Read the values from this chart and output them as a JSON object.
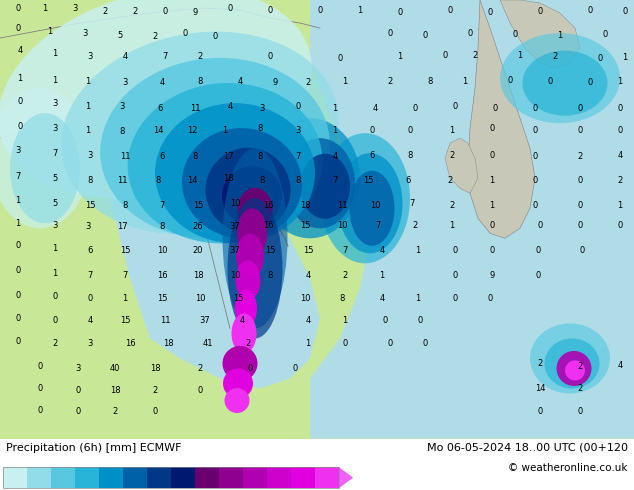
{
  "title_left": "Precipitation (6h) [mm] ECMWF",
  "title_right": "Mo 06-05-2024 18..00 UTC (00+120",
  "copyright": "© weatheronline.co.uk",
  "colorbar_levels": [
    "0.1",
    "0.5",
    "1",
    "2",
    "5",
    "10",
    "15",
    "20",
    "25",
    "30",
    "35",
    "40",
    "45",
    "50"
  ],
  "colorbar_colors": [
    "#c8f0f0",
    "#90dce8",
    "#58c8e0",
    "#28b4d8",
    "#0090c8",
    "#0060a8",
    "#003888",
    "#001870",
    "#6a0070",
    "#900090",
    "#b000b0",
    "#cc00cc",
    "#e000e0",
    "#f030f0"
  ],
  "arrow_color": "#f060f8",
  "fig_width": 6.34,
  "fig_height": 4.9,
  "land_color": "#c8e898",
  "sea_color": "#b0dce8",
  "gray_land_color": "#c8c8b8",
  "border_color": "#808080",
  "orange_border_color": "#c87830",
  "bottom_bg": "#ffffff",
  "label_fontsize": 7.0,
  "title_fontsize": 8.0,
  "copyright_fontsize": 7.5,
  "num_fontsize": 6.0
}
